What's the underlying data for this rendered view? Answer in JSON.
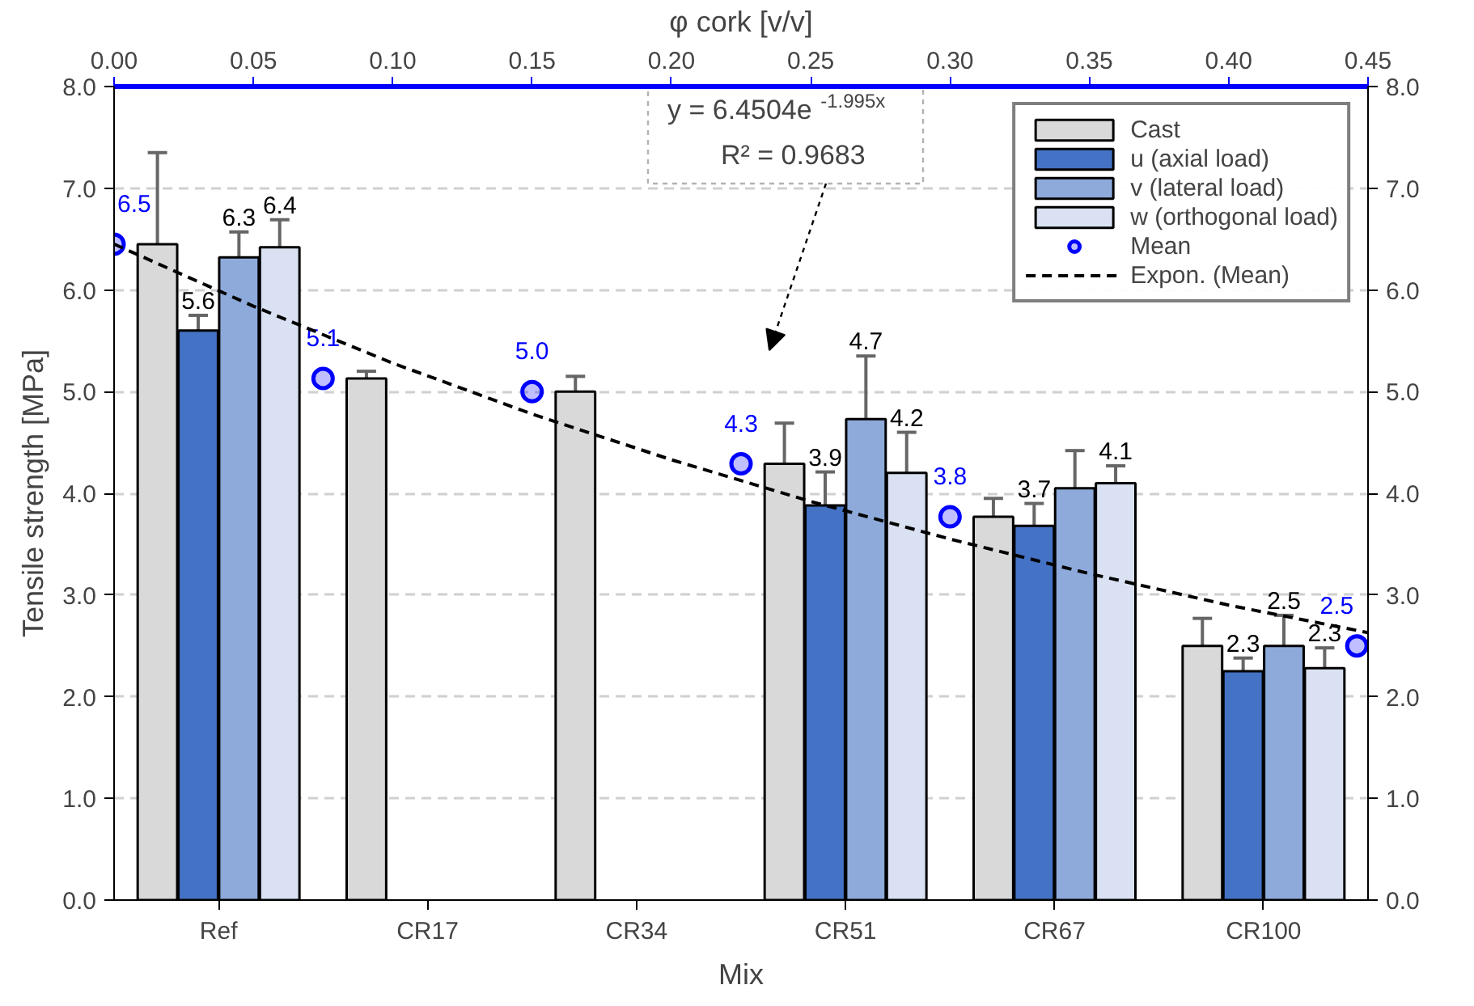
{
  "chart_data": {
    "type": "bar",
    "xlabel": "Mix",
    "ylabel": "Tensile strength [MPa]",
    "x2label": "φ cork [v/v]",
    "categories": [
      "Ref",
      "CR17",
      "CR34",
      "CR51",
      "CR67",
      "CR100"
    ],
    "ylim": [
      0,
      8
    ],
    "y2lim": [
      0,
      8
    ],
    "x2lim": [
      0,
      0.45
    ],
    "yticks": [
      {
        "value": 0,
        "label": "0.0"
      },
      {
        "value": 1,
        "label": "1.0"
      },
      {
        "value": 2,
        "label": "2.0"
      },
      {
        "value": 3,
        "label": "3.0"
      },
      {
        "value": 4,
        "label": "4.0"
      },
      {
        "value": 5,
        "label": "5.0"
      },
      {
        "value": 6,
        "label": "6.0"
      },
      {
        "value": 7,
        "label": "7.0"
      },
      {
        "value": 8,
        "label": "8.0"
      }
    ],
    "y2ticks": [
      {
        "value": 0,
        "label": "0.0"
      },
      {
        "value": 1,
        "label": "1.0"
      },
      {
        "value": 2,
        "label": "2.0"
      },
      {
        "value": 3,
        "label": "3.0"
      },
      {
        "value": 4,
        "label": "4.0"
      },
      {
        "value": 5,
        "label": "5.0"
      },
      {
        "value": 6,
        "label": "6.0"
      },
      {
        "value": 7,
        "label": "7.0"
      },
      {
        "value": 8,
        "label": "8.0"
      }
    ],
    "x2ticks": [
      {
        "value": 0,
        "label": "0.00"
      },
      {
        "value": 0.05,
        "label": "0.05"
      },
      {
        "value": 0.1,
        "label": "0.10"
      },
      {
        "value": 0.15,
        "label": "0.15"
      },
      {
        "value": 0.2,
        "label": "0.20"
      },
      {
        "value": 0.25,
        "label": "0.25"
      },
      {
        "value": 0.3,
        "label": "0.30"
      },
      {
        "value": 0.35,
        "label": "0.35"
      },
      {
        "value": 0.4,
        "label": "0.40"
      },
      {
        "value": 0.45,
        "label": "0.45"
      }
    ],
    "grid": "y",
    "legend": "top right",
    "annotations": [
      "y = 6.4504e$^{-1.995x}$",
      "R² = 0.9683"
    ],
    "series": [
      {
        "name": "Cast",
        "color": "#d9d9d9",
        "values": [
          6.45,
          5.13,
          5.0,
          4.29,
          3.77,
          2.5
        ],
        "errors": [
          0.9,
          0.07,
          0.15,
          0.4,
          0.18,
          0.27
        ]
      },
      {
        "name": "u (axial load)",
        "color": "#4472c4",
        "values": [
          5.6,
          null,
          null,
          3.88,
          3.68,
          2.25
        ],
        "errors": [
          0.15,
          null,
          null,
          0.33,
          0.22,
          0.13
        ],
        "value_labels": [
          "5.6",
          null,
          null,
          "3.9",
          "3.7",
          "2.3"
        ]
      },
      {
        "name": "v (lateral load)",
        "color": "#8eaadb",
        "values": [
          6.32,
          null,
          null,
          4.73,
          4.05,
          2.5
        ],
        "errors": [
          0.25,
          null,
          null,
          0.62,
          0.37,
          0.3
        ],
        "value_labels": [
          "6.3",
          null,
          null,
          "4.7",
          null,
          "2.5"
        ]
      },
      {
        "name": "w (orthogonal load)",
        "color": "#d9e1f2",
        "values": [
          6.42,
          null,
          null,
          4.2,
          4.1,
          2.28
        ],
        "errors": [
          0.27,
          null,
          null,
          0.4,
          0.17,
          0.2
        ],
        "value_labels": [
          "6.4",
          null,
          null,
          "4.2",
          "4.1",
          "2.3"
        ]
      },
      {
        "name": "Mean",
        "type": "scatter",
        "axis": "x2",
        "marker": "circle",
        "color": "#0000ff",
        "x": [
          0,
          0.075,
          0.15,
          0.225,
          0.3,
          0.446
        ],
        "values": [
          6.45,
          5.13,
          5.0,
          4.29,
          3.77,
          2.5
        ],
        "value_labels": [
          "6.5",
          "5.1",
          "5.0",
          "4.3",
          "3.8",
          "2.5"
        ]
      },
      {
        "name": "Expon. (Mean)",
        "type": "line",
        "axis": "x2",
        "line_style": "dashed",
        "color": "#000000",
        "x": [
          0,
          0.05,
          0.1,
          0.15,
          0.2,
          0.25,
          0.3,
          0.35,
          0.4,
          0.45
        ],
        "values": [
          6.45,
          5.84,
          5.28,
          4.78,
          4.33,
          3.92,
          3.55,
          3.21,
          2.9,
          2.63
        ]
      }
    ]
  }
}
